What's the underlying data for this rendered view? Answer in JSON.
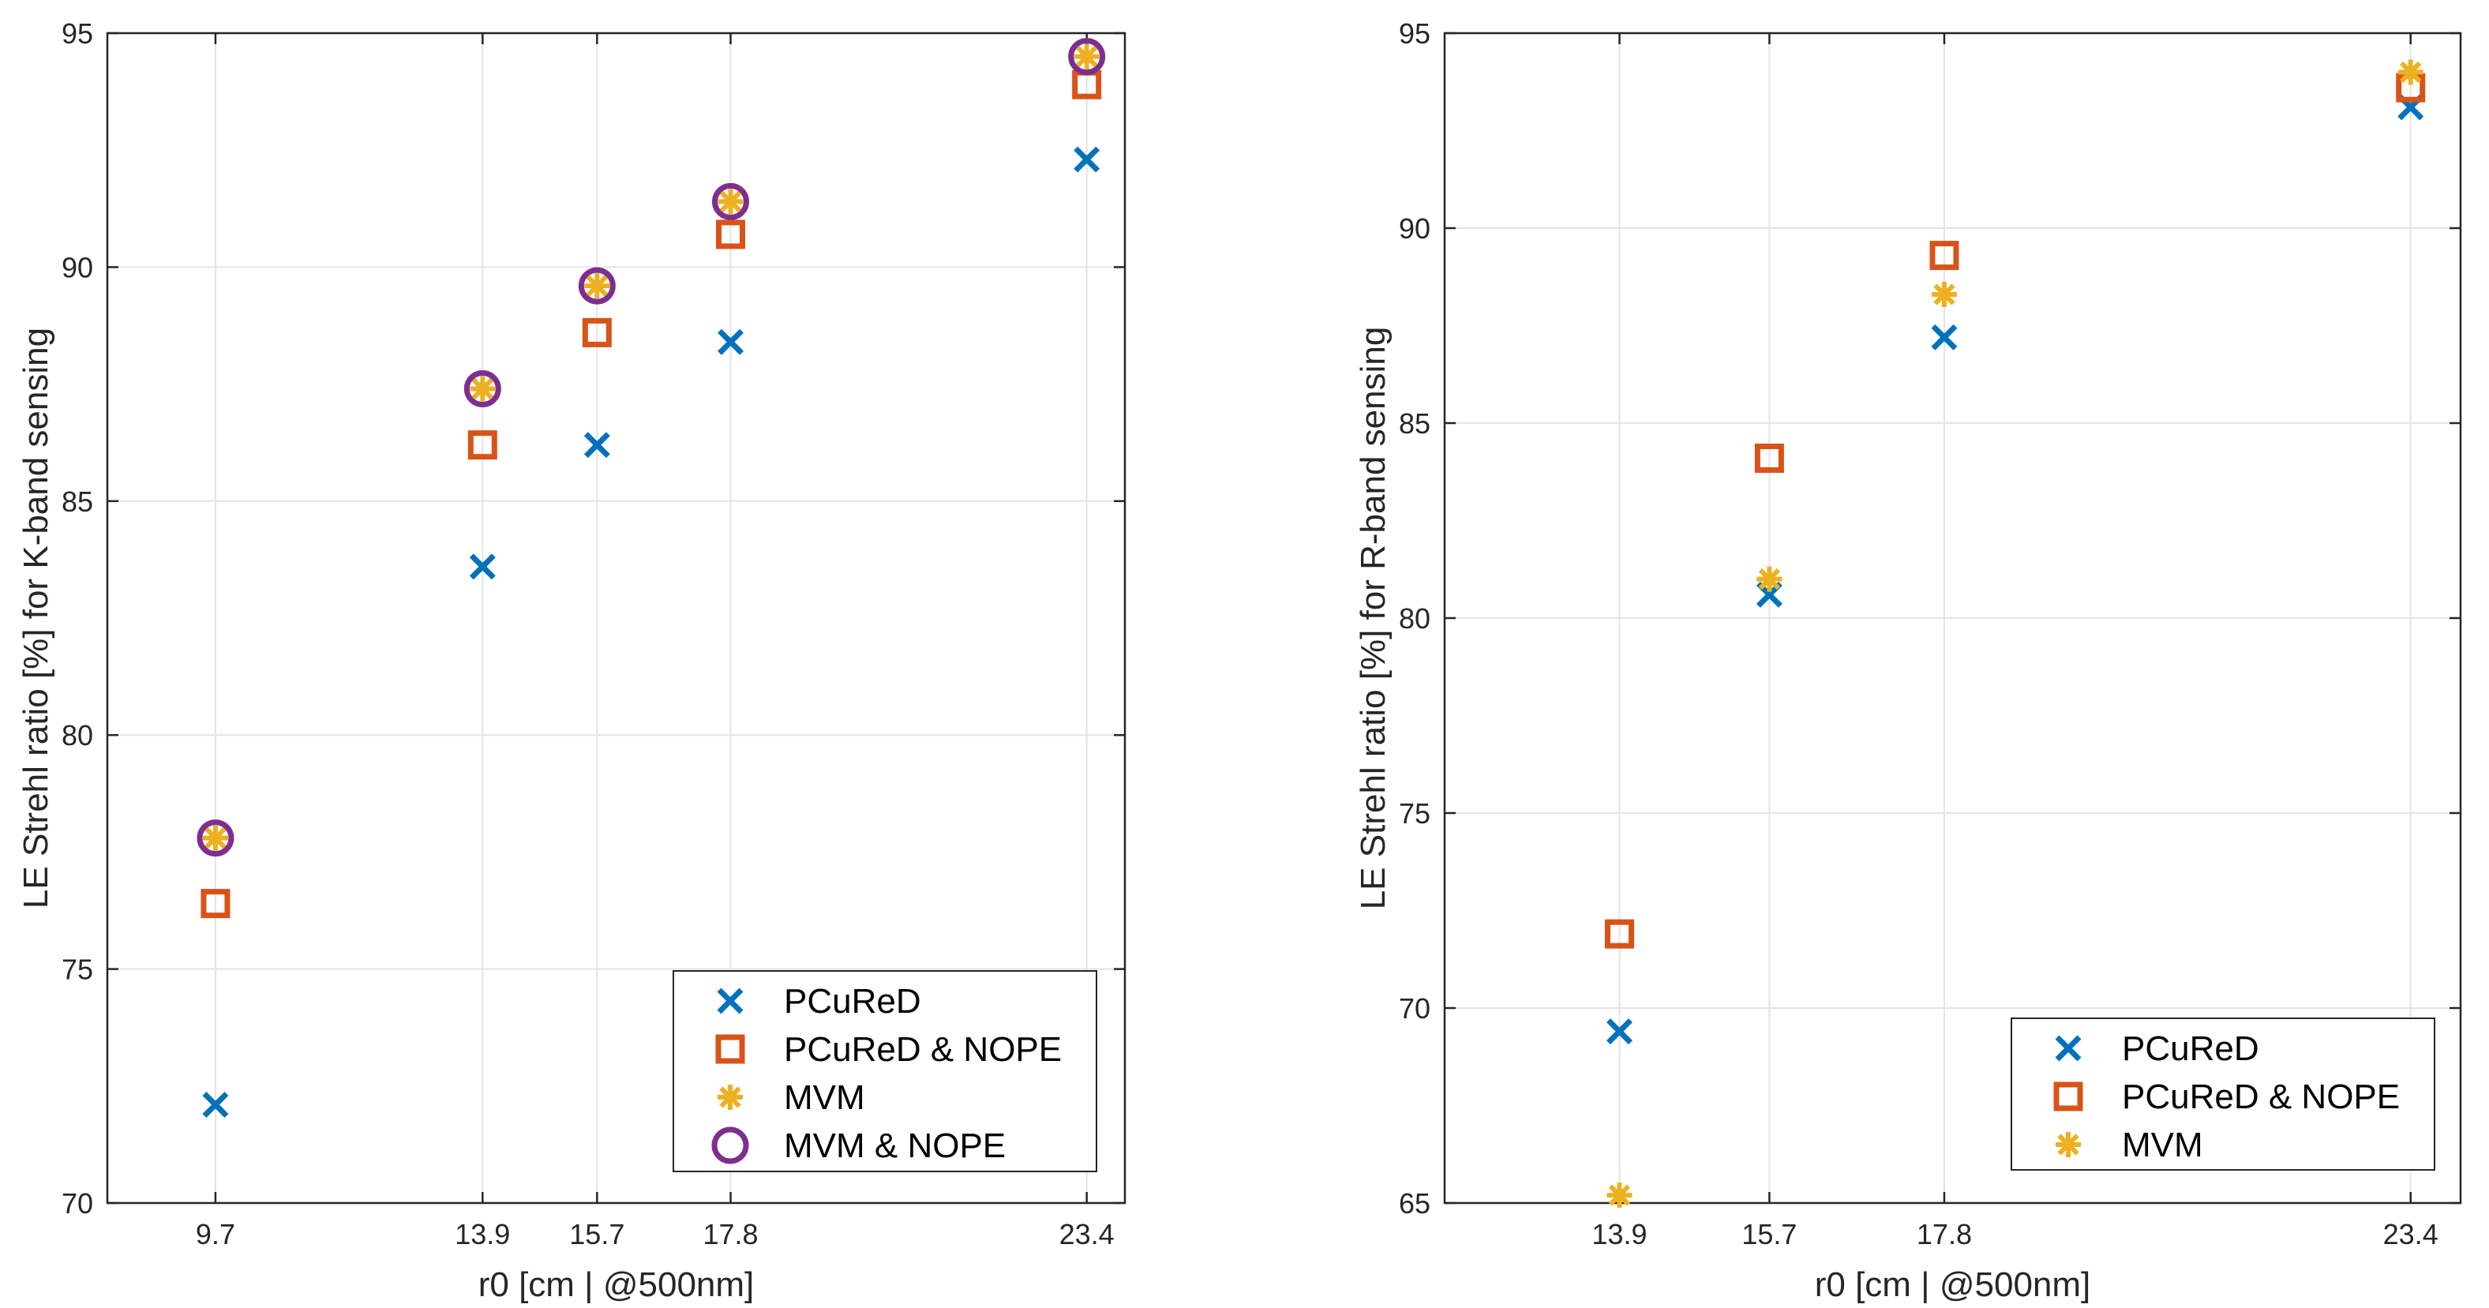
{
  "colors": {
    "pcured": "#0072BD",
    "pcured_nope": "#D95319",
    "mvm": "#EDB120",
    "mvm_nope": "#7E2F8E",
    "grid": "#e3e3e3",
    "axis": "#262626"
  },
  "chart_data": [
    {
      "type": "scatter",
      "id": "left",
      "xlabel": "r0 [cm | @500nm]",
      "ylabel": "LE Strehl ratio [%] for K-band sensing",
      "xlim": [
        8.0,
        24.0
      ],
      "ylim": [
        70,
        95
      ],
      "xticks": [
        9.7,
        13.9,
        15.7,
        17.8,
        23.4
      ],
      "xtick_labels": [
        "9.7",
        "13.9",
        "15.7",
        "17.8",
        "23.4"
      ],
      "yticks": [
        70,
        75,
        80,
        85,
        90,
        95
      ],
      "ytick_labels": [
        "70",
        "75",
        "80",
        "85",
        "90",
        "95"
      ],
      "legend_position": "bottom-right",
      "series": [
        {
          "name": "PCuReD",
          "marker": "x",
          "color_key": "pcured",
          "x": [
            9.7,
            13.9,
            15.7,
            17.8,
            23.4
          ],
          "y": [
            72.1,
            83.6,
            86.2,
            88.4,
            92.3
          ]
        },
        {
          "name": "PCuReD & NOPE",
          "marker": "square",
          "color_key": "pcured_nope",
          "x": [
            9.7,
            13.9,
            15.7,
            17.8,
            23.4
          ],
          "y": [
            76.4,
            86.2,
            88.6,
            90.7,
            93.9
          ]
        },
        {
          "name": "MVM",
          "marker": "star",
          "color_key": "mvm",
          "x": [
            9.7,
            13.9,
            15.7,
            17.8,
            23.4
          ],
          "y": [
            77.8,
            87.4,
            89.6,
            91.4,
            94.5
          ]
        },
        {
          "name": "MVM & NOPE",
          "marker": "circle",
          "color_key": "mvm_nope",
          "x": [
            9.7,
            13.9,
            15.7,
            17.8,
            23.4
          ],
          "y": [
            77.8,
            87.4,
            89.6,
            91.4,
            94.5
          ]
        }
      ]
    },
    {
      "type": "scatter",
      "id": "right",
      "xlabel": "r0 [cm | @500nm]",
      "ylabel": "LE Strehl ratio [%] for R-band sensing",
      "xlim": [
        11.8,
        24.0
      ],
      "ylim": [
        65,
        95
      ],
      "xticks": [
        13.9,
        15.7,
        17.8,
        23.4
      ],
      "xtick_labels": [
        "13.9",
        "15.7",
        "17.8",
        "23.4"
      ],
      "yticks": [
        65,
        70,
        75,
        80,
        85,
        90,
        95
      ],
      "ytick_labels": [
        "65",
        "70",
        "75",
        "80",
        "85",
        "90",
        "95"
      ],
      "legend_position": "bottom-right",
      "series": [
        {
          "name": "PCuReD",
          "marker": "x",
          "color_key": "pcured",
          "x": [
            13.9,
            15.7,
            17.8,
            23.4
          ],
          "y": [
            69.4,
            80.6,
            87.2,
            93.1
          ]
        },
        {
          "name": "PCuReD & NOPE",
          "marker": "square",
          "color_key": "pcured_nope",
          "x": [
            13.9,
            15.7,
            17.8,
            23.4
          ],
          "y": [
            71.9,
            84.1,
            89.3,
            93.6
          ]
        },
        {
          "name": "MVM",
          "marker": "star",
          "color_key": "mvm",
          "x": [
            13.9,
            15.7,
            17.8,
            23.4
          ],
          "y": [
            65.2,
            81.0,
            88.3,
            94.0
          ]
        }
      ]
    }
  ]
}
